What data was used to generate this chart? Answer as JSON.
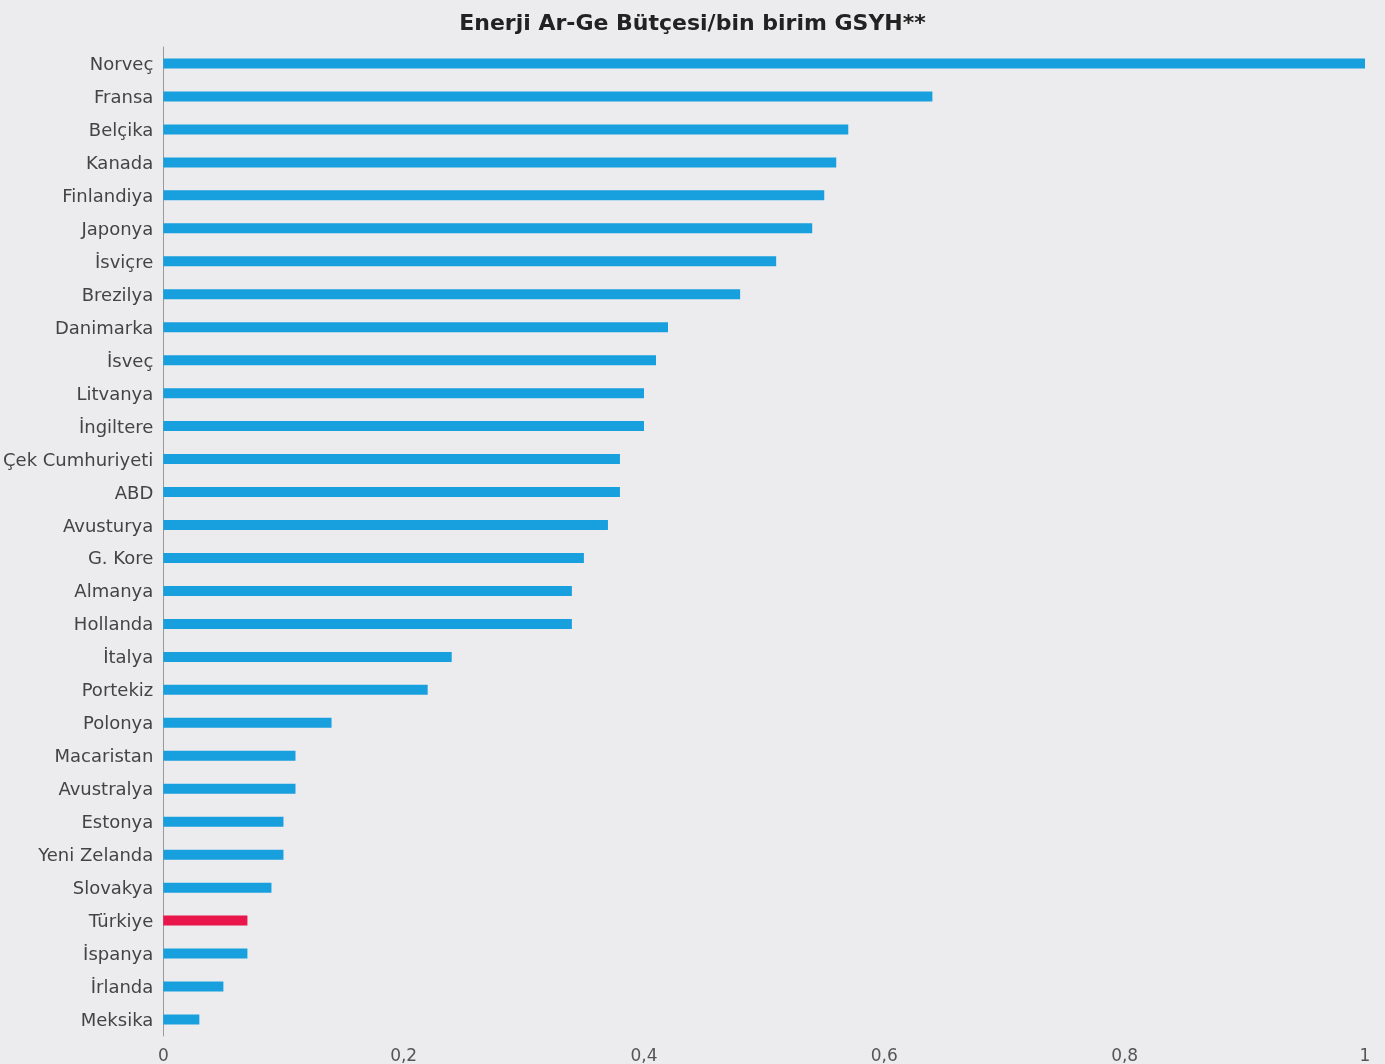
{
  "chart_data": {
    "type": "bar",
    "orientation": "horizontal",
    "title": "Enerji Ar-Ge Bütçesi/bin birim GSYH**",
    "categories": [
      "Norveç",
      "Fransa",
      "Belçika",
      "Kanada",
      "Finlandiya",
      "Japonya",
      "İsviçre",
      "Brezilya",
      "Danimarka",
      "İsveç",
      "Litvanya",
      "İngiltere",
      "Çek Cumhuriyeti",
      "ABD",
      "Avusturya",
      "G. Kore",
      "Almanya",
      "Hollanda",
      "İtalya",
      "Portekiz",
      "Polonya",
      "Macaristan",
      "Avustralya",
      "Estonya",
      "Yeni Zelanda",
      "Slovakya",
      "Türkiye",
      "İspanya",
      "İrlanda",
      "Meksika"
    ],
    "values": [
      1.0,
      0.64,
      0.57,
      0.56,
      0.55,
      0.54,
      0.51,
      0.48,
      0.42,
      0.41,
      0.4,
      0.4,
      0.38,
      0.38,
      0.37,
      0.35,
      0.34,
      0.34,
      0.24,
      0.22,
      0.14,
      0.11,
      0.11,
      0.1,
      0.1,
      0.09,
      0.07,
      0.07,
      0.05,
      0.03
    ],
    "colors": [
      "#189fdd",
      "#189fdd",
      "#189fdd",
      "#189fdd",
      "#189fdd",
      "#189fdd",
      "#189fdd",
      "#189fdd",
      "#189fdd",
      "#189fdd",
      "#189fdd",
      "#189fdd",
      "#189fdd",
      "#189fdd",
      "#189fdd",
      "#189fdd",
      "#189fdd",
      "#189fdd",
      "#189fdd",
      "#189fdd",
      "#189fdd",
      "#189fdd",
      "#189fdd",
      "#189fdd",
      "#189fdd",
      "#189fdd",
      "#e8164b",
      "#189fdd",
      "#189fdd",
      "#189fdd"
    ],
    "xlim": [
      0,
      1
    ],
    "xticks": [
      0,
      {
        "value": 0.2,
        "label": "0,2"
      },
      {
        "value": 0.4,
        "label": "0,4"
      },
      {
        "value": 0.6,
        "label": "0,6"
      },
      {
        "value": 0.8,
        "label": "0,8"
      },
      1
    ],
    "grid": false
  }
}
